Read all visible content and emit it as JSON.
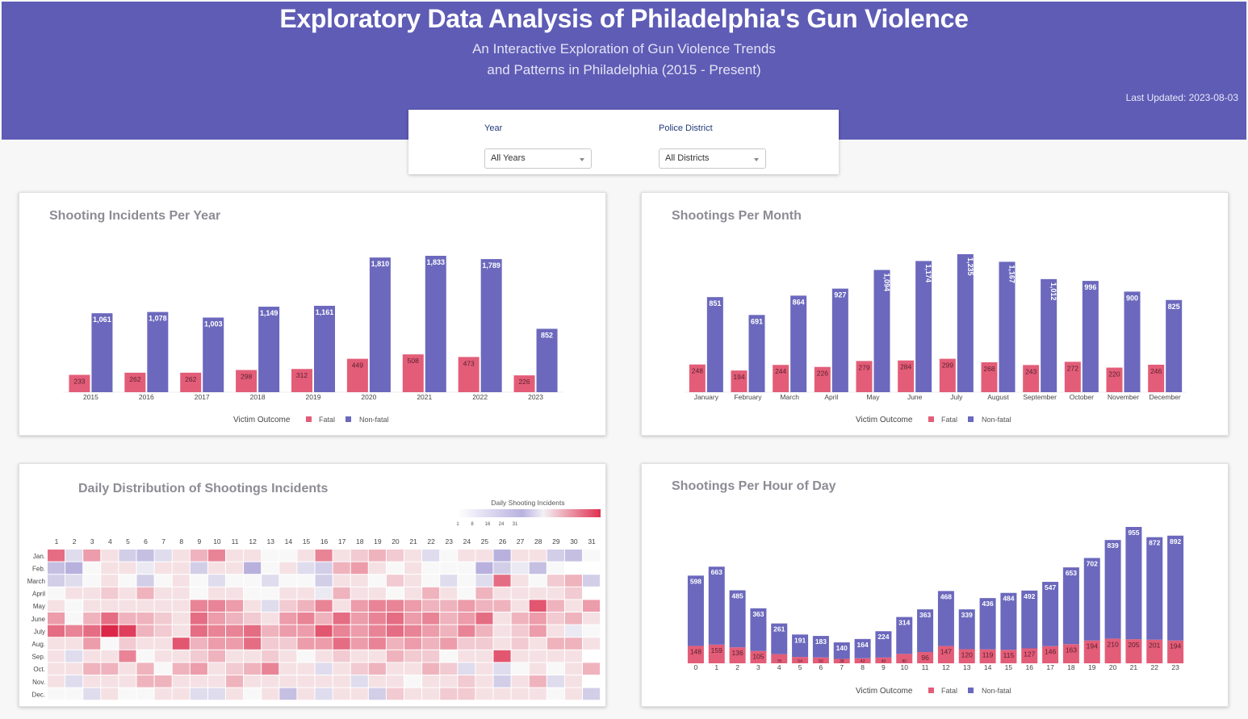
{
  "header": {
    "title": "Exploratory Data Analysis of Philadelphia's Gun Violence",
    "subtitle_line1": "An Interactive Exploration of Gun Violence Trends",
    "subtitle_line2": "and Patterns in Philadelphia (2015 - Present)",
    "last_updated": "Last Updated: 2023-08-03"
  },
  "filters": {
    "year_label": "Year",
    "year_value": "All Years",
    "district_label": "Police District",
    "district_value": "All Districts"
  },
  "colors": {
    "fatal": "#e35d78",
    "nonfatal": "#6b68bd",
    "header": "#5e5cb5"
  },
  "chart_data": [
    {
      "id": "per_year",
      "type": "bar",
      "title": "Shooting Incidents Per Year",
      "legend_title": "Victim Outcome",
      "categories": [
        "2015",
        "2016",
        "2017",
        "2018",
        "2019",
        "2020",
        "2021",
        "2022",
        "2023"
      ],
      "series": [
        {
          "name": "Fatal",
          "values": [
            233,
            262,
            262,
            298,
            312,
            449,
            508,
            473,
            226
          ]
        },
        {
          "name": "Non-fatal",
          "values": [
            1061,
            1078,
            1003,
            1149,
            1161,
            1810,
            1833,
            1789,
            852
          ]
        }
      ]
    },
    {
      "id": "per_month",
      "type": "bar",
      "title": "Shootings Per Month",
      "legend_title": "Victim Outcome",
      "categories": [
        "January",
        "February",
        "March",
        "April",
        "May",
        "June",
        "July",
        "August",
        "September",
        "October",
        "November",
        "December"
      ],
      "series": [
        {
          "name": "Fatal",
          "values": [
            248,
            194,
            244,
            226,
            279,
            284,
            299,
            268,
            243,
            272,
            220,
            246
          ]
        },
        {
          "name": "Non-fatal",
          "values": [
            851,
            691,
            864,
            927,
            1094,
            1174,
            1235,
            1167,
            1012,
            996,
            900,
            825
          ]
        }
      ]
    },
    {
      "id": "daily",
      "type": "heatmap",
      "title": "Daily Distribution of Shootings Incidents",
      "colorbar_title": "Daily Shooting Incidents",
      "colorbar_ticks": [
        "1",
        "8",
        "16",
        "24",
        "31"
      ],
      "x": [
        "1",
        "2",
        "3",
        "4",
        "5",
        "6",
        "7",
        "8",
        "9",
        "10",
        "11",
        "12",
        "13",
        "14",
        "15",
        "16",
        "17",
        "18",
        "19",
        "20",
        "21",
        "22",
        "23",
        "24",
        "25",
        "26",
        "27",
        "28",
        "29",
        "30",
        "31"
      ],
      "y": [
        "Jan.",
        "Feb.",
        "March",
        "April",
        "May",
        "June",
        "July",
        "Aug.",
        "Sep.",
        "Oct.",
        "Nov.",
        "Dec."
      ],
      "z": [
        [
          22,
          14,
          20,
          17,
          13,
          12,
          14,
          17,
          19,
          21,
          17,
          17,
          16,
          16,
          17,
          21,
          17,
          18,
          19,
          18,
          17,
          14,
          16,
          17,
          17,
          11,
          17,
          17,
          13,
          12,
          16
        ],
        [
          12,
          11,
          16,
          17,
          17,
          15,
          17,
          17,
          13,
          17,
          17,
          11,
          16,
          17,
          14,
          13,
          19,
          20,
          17,
          16,
          17,
          16,
          16,
          16,
          11,
          13,
          15,
          12,
          16,
          null,
          null
        ],
        [
          13,
          14,
          16,
          17,
          16,
          13,
          16,
          17,
          16,
          14,
          16,
          16,
          14,
          16,
          16,
          13,
          17,
          17,
          16,
          18,
          17,
          16,
          14,
          16,
          14,
          22,
          17,
          16,
          18,
          19,
          13
        ],
        [
          16,
          17,
          17,
          18,
          17,
          19,
          17,
          17,
          16,
          17,
          17,
          16,
          16,
          17,
          17,
          15,
          19,
          17,
          17,
          16,
          17,
          19,
          17,
          16,
          19,
          17,
          17,
          17,
          17,
          18,
          null
        ],
        [
          17,
          16,
          17,
          17,
          17,
          17,
          17,
          17,
          21,
          21,
          20,
          17,
          14,
          18,
          19,
          21,
          17,
          20,
          21,
          21,
          20,
          19,
          19,
          20,
          19,
          19,
          17,
          23,
          19,
          17,
          20
        ],
        [
          20,
          16,
          19,
          22,
          19,
          19,
          18,
          17,
          22,
          20,
          19,
          18,
          17,
          20,
          21,
          19,
          22,
          20,
          21,
          22,
          20,
          21,
          19,
          20,
          22,
          17,
          19,
          20,
          18,
          19,
          17
        ],
        [
          22,
          21,
          22,
          25,
          24,
          19,
          18,
          17,
          22,
          21,
          21,
          22,
          19,
          20,
          20,
          23,
          21,
          20,
          21,
          22,
          21,
          20,
          19,
          21,
          19,
          17,
          18,
          20,
          17,
          15,
          16
        ],
        [
          17,
          17,
          20,
          16,
          18,
          17,
          17,
          23,
          19,
          20,
          20,
          22,
          18,
          18,
          20,
          20,
          22,
          20,
          21,
          19,
          20,
          19,
          20,
          18,
          18,
          17,
          18,
          17,
          19,
          19,
          17
        ],
        [
          17,
          14,
          17,
          17,
          21,
          16,
          17,
          17,
          18,
          19,
          17,
          17,
          18,
          17,
          16,
          17,
          18,
          17,
          17,
          19,
          18,
          18,
          16,
          17,
          17,
          23,
          17,
          17,
          17,
          17,
          null
        ],
        [
          17,
          17,
          19,
          19,
          17,
          19,
          16,
          19,
          20,
          17,
          18,
          19,
          21,
          17,
          17,
          14,
          17,
          18,
          19,
          17,
          17,
          19,
          18,
          14,
          17,
          14,
          16,
          17,
          16,
          17,
          19
        ],
        [
          17,
          14,
          17,
          17,
          17,
          19,
          19,
          17,
          17,
          17,
          19,
          17,
          17,
          17,
          17,
          17,
          17,
          14,
          17,
          17,
          16,
          17,
          17,
          18,
          17,
          13,
          17,
          19,
          14,
          17,
          null
        ],
        [
          16,
          16,
          14,
          17,
          16,
          16,
          17,
          17,
          14,
          14,
          17,
          16,
          17,
          12,
          17,
          14,
          17,
          17,
          13,
          18,
          17,
          17,
          18,
          18,
          17,
          17,
          17,
          17,
          16,
          17,
          13
        ]
      ]
    },
    {
      "id": "per_hour",
      "type": "bar",
      "title": "Shootings Per Hour of Day",
      "legend_title": "Victim Outcome",
      "categories": [
        "0",
        "1",
        "2",
        "3",
        "4",
        "5",
        "6",
        "7",
        "8",
        "9",
        "10",
        "11",
        "12",
        "13",
        "14",
        "15",
        "16",
        "17",
        "18",
        "19",
        "20",
        "21",
        "22",
        "23"
      ],
      "series": [
        {
          "name": "Fatal",
          "values": [
            148,
            159,
            136,
            105,
            78,
            54,
            50,
            38,
            43,
            49,
            80,
            96,
            147,
            120,
            119,
            115,
            127,
            146,
            163,
            194,
            210,
            205,
            201,
            194
          ]
        },
        {
          "name": "Non-fatal",
          "values": [
            598,
            663,
            485,
            363,
            261,
            191,
            183,
            140,
            164,
            224,
            314,
            363,
            468,
            339,
            436,
            484,
            492,
            547,
            653,
            702,
            839,
            955,
            872,
            892
          ]
        }
      ]
    }
  ]
}
